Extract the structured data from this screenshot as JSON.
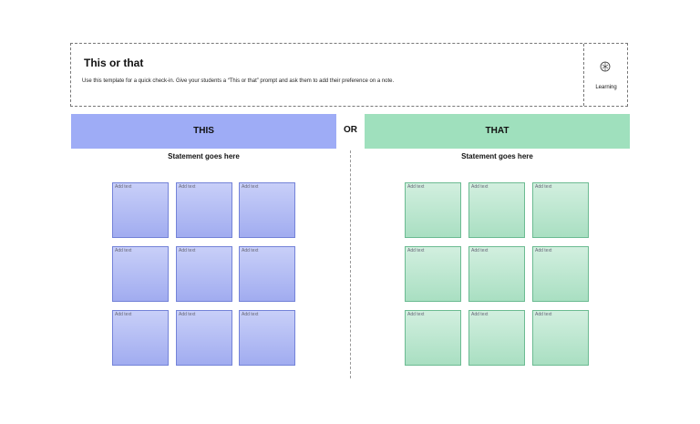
{
  "header": {
    "title": "This or that",
    "description": "Use this template for a quick check-in. Give your students a “This or that” prompt and ask them to add their preference on a note.",
    "tag": "Learning"
  },
  "separator": "OR",
  "columns": [
    {
      "heading": "THIS",
      "statement": "Statement goes here",
      "notes": [
        "Add text",
        "Add text",
        "Add text",
        "Add text",
        "Add text",
        "Add text",
        "Add text",
        "Add text",
        "Add text"
      ]
    },
    {
      "heading": "THAT",
      "statement": "Statement goes here",
      "notes": [
        "Add text",
        "Add text",
        "Add text",
        "Add text",
        "Add text",
        "Add text",
        "Add text",
        "Add text",
        "Add text"
      ]
    }
  ]
}
